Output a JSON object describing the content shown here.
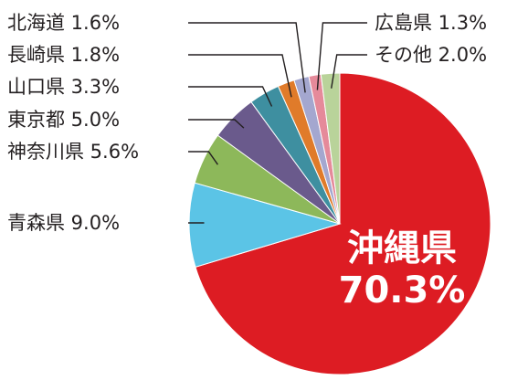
{
  "chart_data": {
    "type": "pie",
    "start": "top",
    "direction": "clockwise",
    "slices": [
      {
        "label": "沖縄県",
        "value": 70.3,
        "display": "70.3%",
        "color": "#dd1c23"
      },
      {
        "label": "青森県",
        "value": 9.0,
        "display": "9.0%",
        "color": "#5bc4e6"
      },
      {
        "label": "神奈川県",
        "value": 5.6,
        "display": "5.6%",
        "color": "#8db85a"
      },
      {
        "label": "東京都",
        "value": 5.0,
        "display": "5.0%",
        "color": "#6a5a8c"
      },
      {
        "label": "山口県",
        "value": 3.3,
        "display": "3.3%",
        "color": "#3e8fa0"
      },
      {
        "label": "長崎県",
        "value": 1.8,
        "display": "1.8%",
        "color": "#e07b2a"
      },
      {
        "label": "北海道",
        "value": 1.6,
        "display": "1.6%",
        "color": "#a4a7cf"
      },
      {
        "label": "広島県",
        "value": 1.3,
        "display": "1.3%",
        "color": "#e58a9a"
      },
      {
        "label": "その他",
        "value": 2.0,
        "display": "2.0%",
        "color": "#b9d39a"
      }
    ]
  }
}
